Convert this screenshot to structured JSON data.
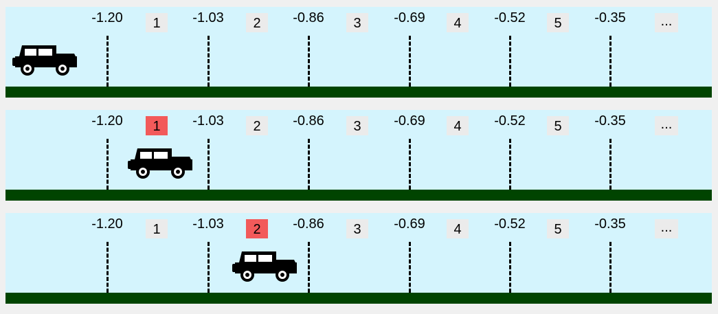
{
  "markers": [
    "-1.20",
    "-1.03",
    "-0.86",
    "-0.69",
    "-0.52",
    "-0.35"
  ],
  "steps": [
    "1",
    "2",
    "3",
    "4",
    "5"
  ],
  "ellipsis": "...",
  "panels": [
    {
      "active_step": null,
      "car_position": "start"
    },
    {
      "active_step": 1,
      "car_position": "after-step-1"
    },
    {
      "active_step": 2,
      "car_position": "after-step-2"
    }
  ],
  "colors": {
    "sky": "#d4f4fd",
    "ground": "#004400",
    "badge": "#ebebeb",
    "badge_active": "#f25a5a"
  },
  "icons": {
    "vehicle": "jeep-icon"
  }
}
